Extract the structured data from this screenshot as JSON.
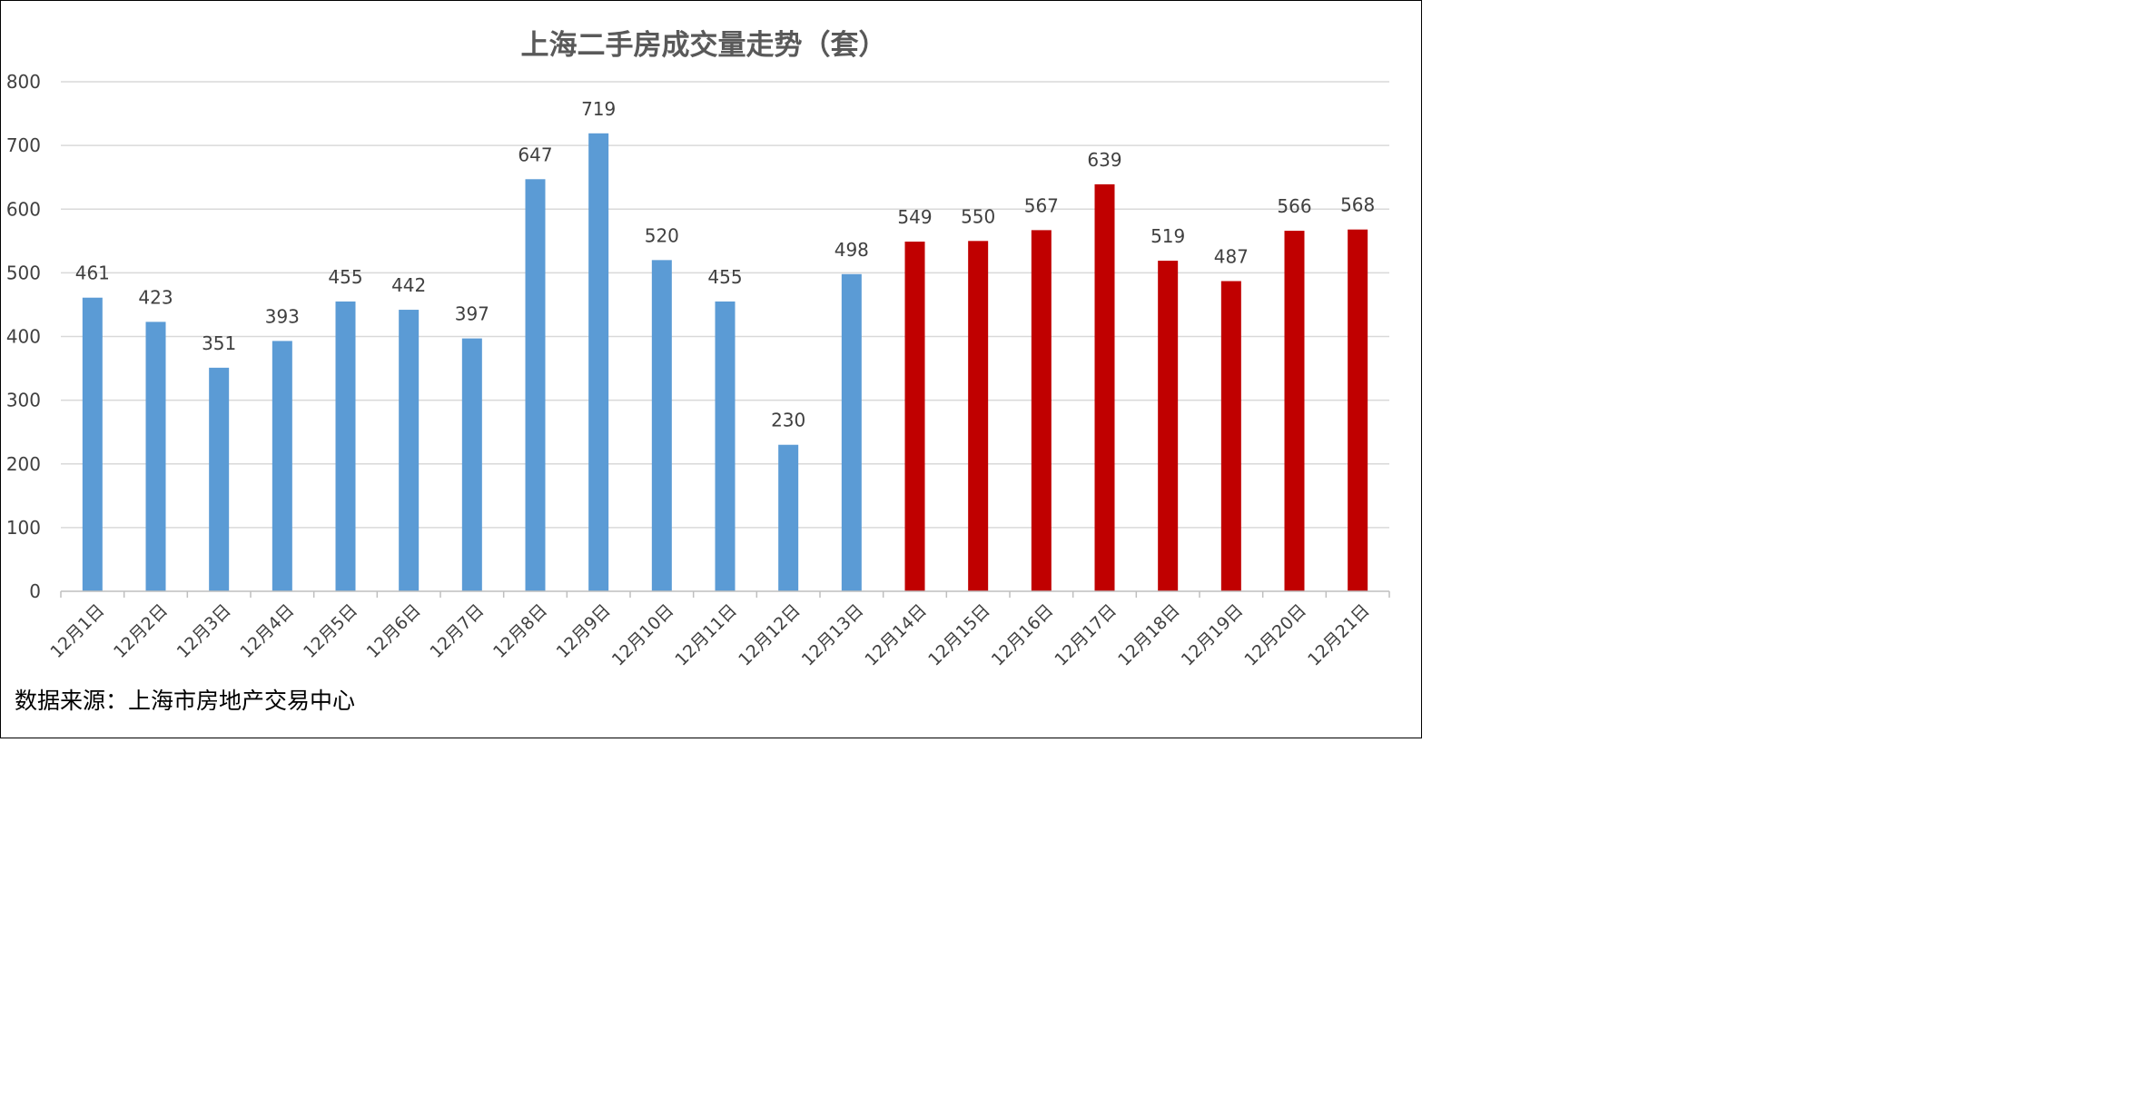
{
  "chart_data": {
    "type": "bar",
    "title": "上海二手房成交量走势（套）",
    "categories": [
      "12月1日",
      "12月2日",
      "12月3日",
      "12月4日",
      "12月5日",
      "12月6日",
      "12月7日",
      "12月8日",
      "12月9日",
      "12月10日",
      "12月11日",
      "12月12日",
      "12月13日",
      "12月14日",
      "12月15日",
      "12月16日",
      "12月17日",
      "12月18日",
      "12月19日",
      "12月20日",
      "12月21日"
    ],
    "values": [
      461,
      423,
      351,
      393,
      455,
      442,
      397,
      647,
      719,
      520,
      455,
      230,
      498,
      549,
      550,
      567,
      639,
      519,
      487,
      566,
      568
    ],
    "bar_colors": [
      "#5b9bd5",
      "#5b9bd5",
      "#5b9bd5",
      "#5b9bd5",
      "#5b9bd5",
      "#5b9bd5",
      "#5b9bd5",
      "#5b9bd5",
      "#5b9bd5",
      "#5b9bd5",
      "#5b9bd5",
      "#5b9bd5",
      "#5b9bd5",
      "#c00000",
      "#c00000",
      "#c00000",
      "#c00000",
      "#c00000",
      "#c00000",
      "#c00000",
      "#c00000"
    ],
    "ylim": [
      0,
      800
    ],
    "yticks": [
      0,
      100,
      200,
      300,
      400,
      500,
      600,
      700,
      800
    ],
    "grid": true,
    "data_labels": true,
    "xlabel": "",
    "ylabel": ""
  },
  "source_note": "数据来源：上海市房地产交易中心"
}
